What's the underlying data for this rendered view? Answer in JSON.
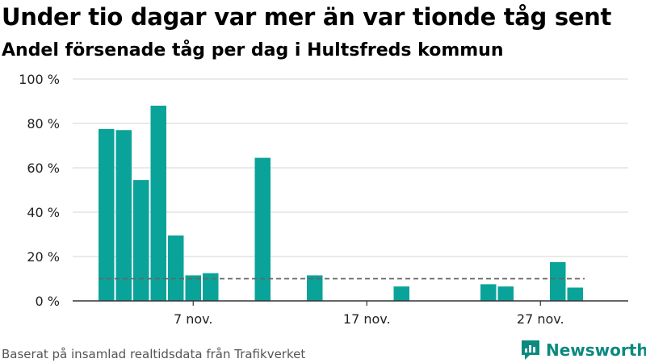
{
  "title": "Under tio dagar var mer än var tionde tåg sent",
  "subtitle": "Andel försenade tåg per dag i Hultsfreds kommun",
  "footer": "Baserat på insamlad realtidsdata från Trafikverket",
  "brand": "Newsworthy",
  "colors": {
    "bar": "#0aa39a",
    "grid": "#dddddd",
    "axis": "#333333",
    "reference": "#666666",
    "brand": "#0b8a7f"
  },
  "chart_data": {
    "type": "bar",
    "x_unit": "day",
    "categories": [
      "2 nov.",
      "3 nov.",
      "4 nov.",
      "5 nov.",
      "6 nov.",
      "7 nov.",
      "8 nov.",
      "9 nov.",
      "10 nov.",
      "11 nov.",
      "12 nov.",
      "13 nov.",
      "14 nov.",
      "15 nov.",
      "16 nov.",
      "17 nov.",
      "18 nov.",
      "19 nov.",
      "20 nov.",
      "21 nov.",
      "22 nov.",
      "23 nov.",
      "24 nov.",
      "25 nov.",
      "26 nov.",
      "27 nov.",
      "28 nov.",
      "29 nov."
    ],
    "values": [
      77.5,
      77,
      54.5,
      88,
      29.5,
      11.5,
      12.5,
      0,
      0,
      64.5,
      0,
      0,
      11.5,
      0,
      0,
      0,
      0,
      6.5,
      0,
      0,
      0,
      0,
      7.5,
      6.5,
      0,
      0,
      17.5,
      6
    ],
    "ylim": [
      0,
      100
    ],
    "y_ticks": [
      0,
      20,
      40,
      60,
      80,
      100
    ],
    "y_tick_labels": [
      "0 %",
      "20 %",
      "40 %",
      "60 %",
      "80 %",
      "100 %"
    ],
    "x_ticks": [
      {
        "index": 5,
        "label": "7 nov."
      },
      {
        "index": 15,
        "label": "17 nov."
      },
      {
        "index": 25,
        "label": "27 nov."
      }
    ],
    "reference_line": 10,
    "grid": true,
    "legend": "none"
  }
}
